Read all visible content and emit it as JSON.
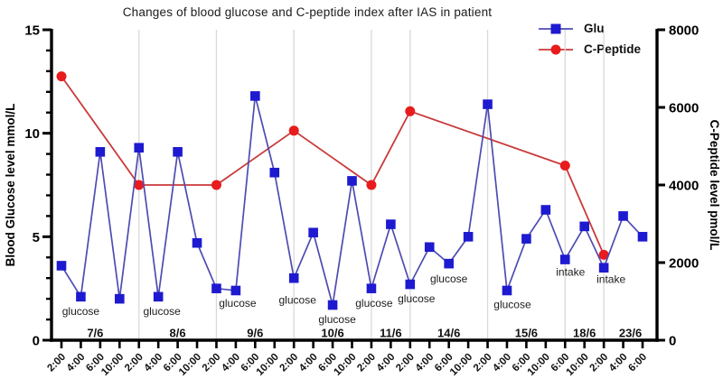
{
  "chart_data": {
    "type": "line",
    "title": "Changes of blood glucose and C-peptide index after IAS in patient",
    "left_axis": {
      "label": "Blood Glucose level mmol/L",
      "range": [
        0,
        15
      ],
      "major_ticks": [
        0,
        5,
        10,
        15
      ],
      "minor_step": 1
    },
    "right_axis": {
      "label": "C-Peptide level pmol/L",
      "range": [
        0,
        8000
      ],
      "major_ticks": [
        0,
        2000,
        4000,
        6000,
        8000
      ]
    },
    "x_axis": {
      "day_groups": [
        {
          "label": "7/6",
          "times": [
            "2:00",
            "4:00",
            "6:00",
            "10:00"
          ]
        },
        {
          "label": "8/6",
          "times": [
            "2:00",
            "4:00",
            "6:00",
            "10:00"
          ]
        },
        {
          "label": "9/6",
          "times": [
            "2:00",
            "4:00",
            "6:00",
            "10:00"
          ]
        },
        {
          "label": "10/6",
          "times": [
            "2:00",
            "4:00",
            "6:00",
            "10:00"
          ]
        },
        {
          "label": "11/6",
          "times": [
            "2:00",
            "4:00"
          ]
        },
        {
          "label": "14/6",
          "times": [
            "2:00",
            "4:00",
            "6:00",
            "10:00"
          ]
        },
        {
          "label": "15/6",
          "times": [
            "2:00",
            "4:00",
            "6:00",
            "10:00"
          ]
        },
        {
          "label": "18/6",
          "times": [
            "6:00",
            "10:00"
          ]
        },
        {
          "label": "23/6",
          "times": [
            "2:00",
            "4:00",
            "6:00"
          ]
        }
      ]
    },
    "grid": {
      "vertical_lines_at_day_starts": true,
      "color": "#d9d9d9"
    },
    "series": [
      {
        "name": "Glu",
        "axis": "left",
        "marker": "square",
        "color": "#1d1ad0",
        "line_color": "#4e4cb2",
        "values": [
          3.6,
          2.1,
          9.1,
          2.0,
          9.3,
          2.1,
          9.1,
          4.7,
          2.5,
          2.4,
          11.8,
          8.1,
          3.0,
          5.2,
          1.7,
          7.7,
          2.5,
          5.6,
          2.7,
          4.5,
          3.7,
          5.0,
          11.4,
          2.4,
          4.9,
          6.3,
          3.9,
          5.5,
          3.5,
          6.0,
          5.0
        ]
      },
      {
        "name": "C-Peptide",
        "axis": "right",
        "marker": "circle",
        "color": "#e81c1c",
        "line_color": "#c93a3a",
        "points": [
          {
            "x": 0,
            "value": 6800
          },
          {
            "x": 4,
            "value": 4000
          },
          {
            "x": 8,
            "value": 4000
          },
          {
            "x": 12,
            "value": 5400
          },
          {
            "x": 16,
            "value": 4000
          },
          {
            "x": 18,
            "value": 5900
          },
          {
            "x": 26,
            "value": 4500
          },
          {
            "x": 28,
            "value": 2200
          }
        ]
      }
    ],
    "annotations": [
      {
        "text": "glucose",
        "x": 1,
        "y": 1.4,
        "dx": 0
      },
      {
        "text": "glucose",
        "x": 5,
        "y": 1.4,
        "dx": 4
      },
      {
        "text": "glucose",
        "x": 9,
        "y": 1.79,
        "dx": 2
      },
      {
        "text": "glucose",
        "x": 12,
        "y": 1.95,
        "dx": 4
      },
      {
        "text": "glucose",
        "x": 14,
        "y": 1.0,
        "dx": 5
      },
      {
        "text": "glucose",
        "x": 16,
        "y": 1.78,
        "dx": 3
      },
      {
        "text": "glucose",
        "x": 18,
        "y": 2.0,
        "dx": 7
      },
      {
        "text": "glucose",
        "x": 20,
        "y": 2.97,
        "dx": 0
      },
      {
        "text": "glucose",
        "x": 23,
        "y": 1.72,
        "dx": 6
      },
      {
        "text": "intake",
        "x": 26,
        "y": 3.3,
        "dx": 6
      },
      {
        "text": "intake",
        "x": 28,
        "y": 2.95,
        "dx": 8
      }
    ]
  }
}
